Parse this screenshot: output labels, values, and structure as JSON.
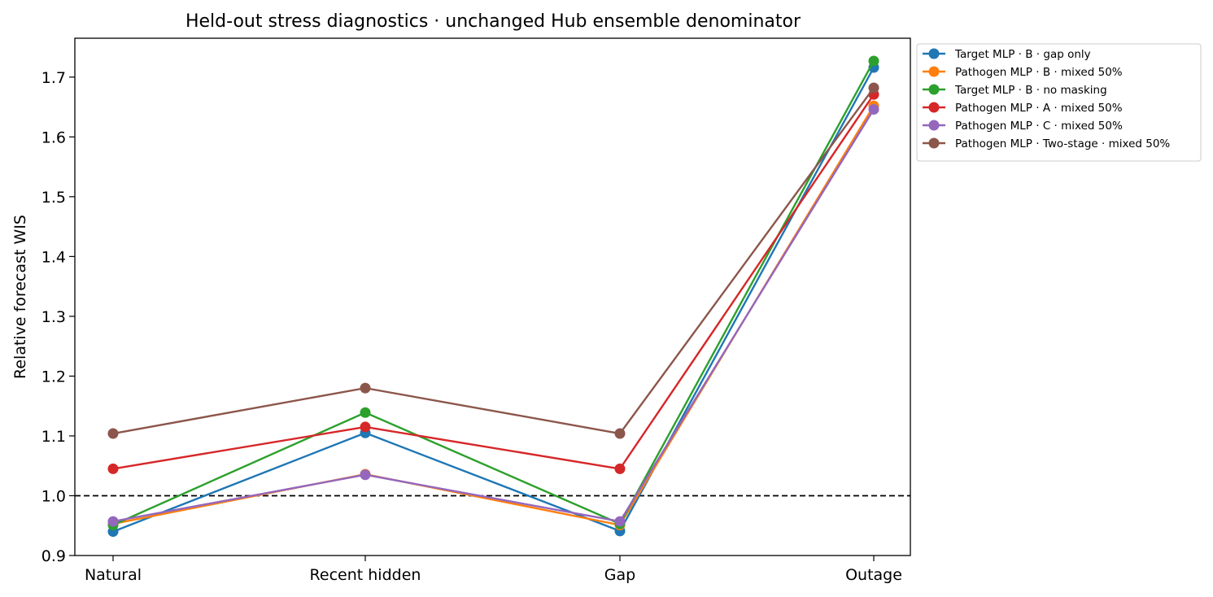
{
  "chart_data": {
    "type": "line",
    "title": "Held-out stress diagnostics · unchanged Hub ensemble denominator",
    "xlabel": "",
    "ylabel": "Relative forecast WIS",
    "categories": [
      "Natural",
      "Recent hidden",
      "Gap",
      "Outage"
    ],
    "ylim": [
      0.9,
      1.765
    ],
    "yticks": [
      0.9,
      1.0,
      1.1,
      1.2,
      1.3,
      1.4,
      1.5,
      1.6,
      1.7
    ],
    "ytick_labels": [
      "0.9",
      "1.0",
      "1.1",
      "1.2",
      "1.3",
      "1.4",
      "1.5",
      "1.6",
      "1.7"
    ],
    "reference_line": {
      "y": 1.0,
      "style": "dashed",
      "color": "#000000"
    },
    "grid": false,
    "legend_position": "outside-top-right",
    "series": [
      {
        "name": "Target MLP · B · gap only",
        "color": "#1f77b4",
        "values": [
          0.94,
          1.105,
          0.941,
          1.716
        ]
      },
      {
        "name": "Pathogen MLP · B · mixed 50%",
        "color": "#ff7f0e",
        "values": [
          0.953,
          1.036,
          0.951,
          1.652
        ]
      },
      {
        "name": "Target MLP · B · no masking",
        "color": "#2ca02c",
        "values": [
          0.951,
          1.139,
          0.953,
          1.727
        ]
      },
      {
        "name": "Pathogen MLP · A · mixed 50%",
        "color": "#d62728",
        "values": [
          1.045,
          1.115,
          1.045,
          1.671
        ]
      },
      {
        "name": "Pathogen MLP · C · mixed 50%",
        "color": "#9467bd",
        "values": [
          0.957,
          1.035,
          0.957,
          1.646
        ]
      },
      {
        "name": "Pathogen MLP · Two-stage · mixed 50%",
        "color": "#8c564b",
        "values": [
          1.104,
          1.18,
          1.104,
          1.682
        ]
      }
    ]
  }
}
